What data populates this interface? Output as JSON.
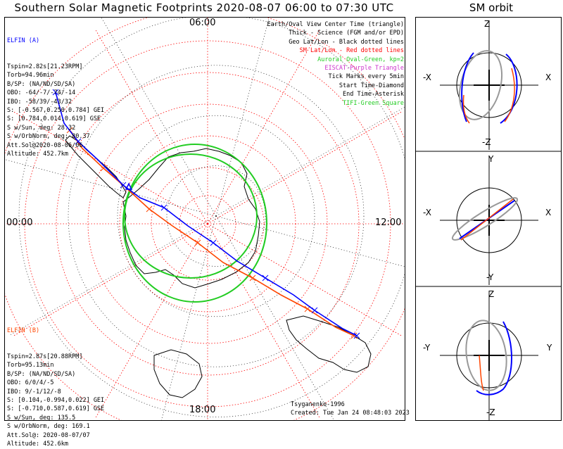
{
  "title": "Southern Solar Magnetic Footprints 2020-08-07 06:00 to 07:30 UTC",
  "orbit_title": "SM orbit",
  "time_labels": {
    "top": "06:00",
    "left": "00:00",
    "right": "12:00",
    "bottom": "18:00"
  },
  "elfin_a": {
    "name": "ELFIN (A)",
    "color": "#0000ff",
    "lines": [
      "Tspin=2.82s[21.23RPM]",
      "Torb=94.96min",
      "B/SP: (NA/ND/SD/SA)",
      "OBO: -64/-7/-74/-14",
      "IBO: -58/39/-43/32",
      "S: [-0.567,0.250,0.784] GEI",
      "S: [0.784,0.014,0.619] GSE",
      "S w/Sun, deg: 28.32",
      "S w/OrbNorm, deg: 80.37",
      "Att.Sol@2020-08-06/06",
      "Altitude: 452.7km"
    ]
  },
  "elfin_b": {
    "name": "ELFIN (B)",
    "color": "#ff4500",
    "lines": [
      "Tspin=2.87s[20.88RPM]",
      "Torb=95.13min",
      "B/SP: (NA/ND/SD/SA)",
      "OBO: 6/0/4/-5",
      "IBO: 9/-1/12/-8",
      "S: [0.104,-0.994,0.022] GEI",
      "S: [-0.710,0.587,0.619] GSE",
      "S w/Sun, deg: 135.5",
      "S w/OrbNorm, deg: 169.1",
      "Att.Sol@: 2020-08-07/07",
      "Altitude: 452.6km"
    ]
  },
  "legend": [
    {
      "text": "Earth/Oval View Center Time (triangle)",
      "color": "#000000"
    },
    {
      "text": "Thick - Science (FGM and/or EPD)",
      "color": "#000000"
    },
    {
      "text": "Geo Lat/Lon - Black dotted lines",
      "color": "#000000"
    },
    {
      "text": "SM Lat/Lon - Red dotted lines",
      "color": "#ff0000"
    },
    {
      "text": "Auroral Oval-Green, kp=2",
      "color": "#22cc22"
    },
    {
      "text": "EISCAT-Purple Triangle",
      "color": "#cc33cc"
    },
    {
      "text": "Tick Marks every 5min",
      "color": "#000000"
    },
    {
      "text": "Start Time-Diamond",
      "color": "#000000"
    },
    {
      "text": "End Time-Asterisk",
      "color": "#000000"
    },
    {
      "text": "TIFI-Green Square",
      "color": "#22cc22"
    }
  ],
  "credits": {
    "author": "Tsyganenko-1996",
    "created": "Created: Tue Jan 24 08:48:03 2023"
  },
  "orbit_panels": [
    {
      "top": "Z",
      "bottom": "-Z",
      "left": "-X",
      "right": "X"
    },
    {
      "top": "Y",
      "bottom": "-Y",
      "left": "-X",
      "right": "X"
    },
    {
      "top": "Z",
      "bottom": "-Z",
      "left": "-Y",
      "right": "Y"
    }
  ]
}
